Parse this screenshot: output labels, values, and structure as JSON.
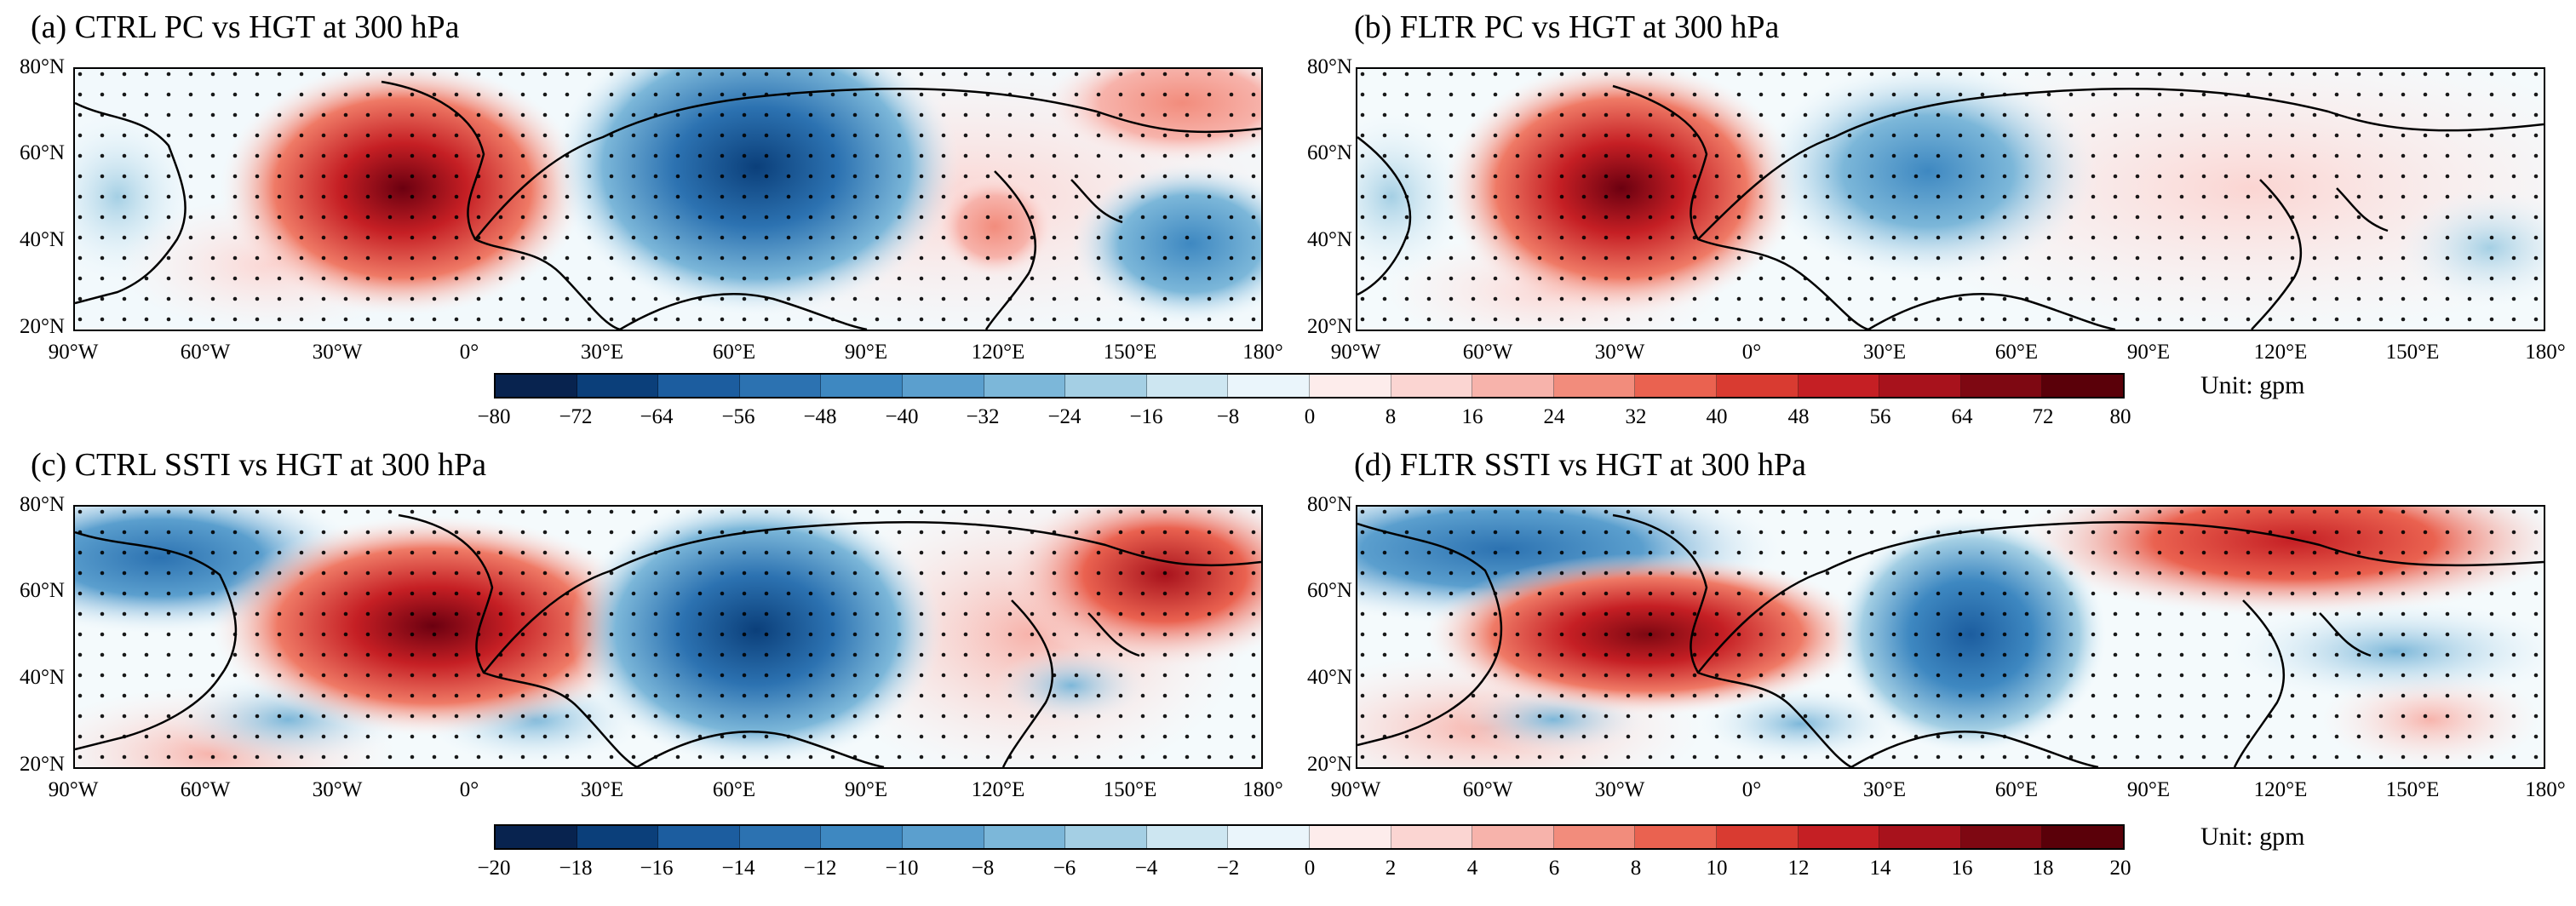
{
  "panels": [
    {
      "title": "(a) CTRL PC vs HGT at 300 hPa",
      "lon_labels": [
        "90°W",
        "60°W",
        "30°W",
        "0°",
        "30°E",
        "60°E",
        "90°E",
        "120°E",
        "150°E",
        "180°"
      ]
    },
    {
      "title": "(b) FLTR PC vs HGT at 300 hPa",
      "lon_labels": [
        "90°W",
        "60°W",
        "30°W",
        "0°",
        "30°E",
        "60°E",
        "90°E",
        "120°E",
        "150°E",
        "180°"
      ]
    },
    {
      "title": "(c) CTRL SSTI vs HGT at 300 hPa",
      "lon_labels": [
        "90°W",
        "60°W",
        "30°W",
        "0°",
        "30°E",
        "60°E",
        "90°E",
        "120°E",
        "150°E",
        "180°"
      ]
    },
    {
      "title": "(d) FLTR SSTI vs HGT at 300 hPa",
      "lon_labels": [
        "90°W",
        "60°W",
        "30°W",
        "0°",
        "30°E",
        "60°E",
        "90°E",
        "120°E",
        "150°E",
        "180°"
      ]
    }
  ],
  "lat_labels": [
    "80°N",
    "60°N",
    "40°N",
    "20°N"
  ],
  "colorbars": [
    {
      "ticks": [
        "−80",
        "−72",
        "−64",
        "−56",
        "−48",
        "−40",
        "−32",
        "−24",
        "−16",
        "−8",
        "0",
        "8",
        "16",
        "24",
        "32",
        "40",
        "48",
        "56",
        "64",
        "72",
        "80"
      ],
      "unit_label": "Unit:  gpm"
    },
    {
      "ticks": [
        "−20",
        "−18",
        "−16",
        "−14",
        "−12",
        "−10",
        "−8",
        "−6",
        "−4",
        "−2",
        "0",
        "2",
        "4",
        "6",
        "8",
        "10",
        "12",
        "14",
        "16",
        "18",
        "20"
      ],
      "unit_label": "Unit:  gpm"
    }
  ],
  "palette": [
    "#08234f",
    "#0b3f7a",
    "#1c5d9f",
    "#2c72b1",
    "#3e88c1",
    "#5b9fce",
    "#7cb7d9",
    "#a4cfe4",
    "#cde6f1",
    "#eaf5fb",
    "#fdeceb",
    "#fbd5d2",
    "#f7b3ab",
    "#f28c7c",
    "#ea6250",
    "#d93b31",
    "#c51f24",
    "#a8121c",
    "#7e0812",
    "#5a0009"
  ]
}
